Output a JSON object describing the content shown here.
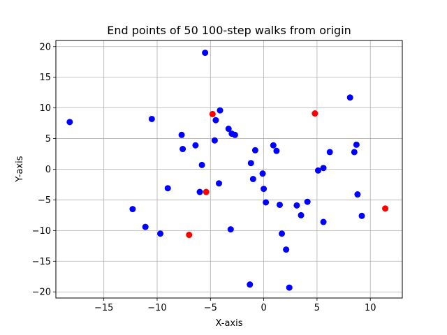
{
  "chart_data": {
    "type": "scatter",
    "title": "End points of 50 100-step walks from origin",
    "xlabel": "X-axis",
    "ylabel": "Y-axis",
    "xlim": [
      -19.5,
      13
    ],
    "ylim": [
      -21,
      21
    ],
    "xticks": [
      -15,
      -10,
      -5,
      0,
      5,
      10
    ],
    "yticks": [
      -20,
      -15,
      -10,
      -5,
      0,
      5,
      10,
      15,
      20
    ],
    "xtick_labels": [
      "−15",
      "−10",
      "−5",
      "0",
      "5",
      "10"
    ],
    "ytick_labels": [
      "−20",
      "−15",
      "−10",
      "−5",
      "0",
      "5",
      "10",
      "15",
      "20"
    ],
    "grid": true,
    "colors": {
      "default": "#0000ff",
      "highlight": "#ff0000",
      "grid": "#b0b0b0"
    },
    "series": [
      {
        "color": "#0000ff",
        "points": [
          {
            "x": -18.2,
            "y": 7.7
          },
          {
            "x": -12.3,
            "y": -6.5
          },
          {
            "x": -11.1,
            "y": -9.4
          },
          {
            "x": -10.5,
            "y": 8.2
          },
          {
            "x": -9.7,
            "y": -10.5
          },
          {
            "x": -9.0,
            "y": -3.1
          },
          {
            "x": -7.7,
            "y": 5.6
          },
          {
            "x": -7.6,
            "y": 3.3
          },
          {
            "x": -6.4,
            "y": 3.9
          },
          {
            "x": -6.0,
            "y": -3.7
          },
          {
            "x": -5.8,
            "y": 0.7
          },
          {
            "x": -5.5,
            "y": 19.0
          },
          {
            "x": -4.6,
            "y": 4.7
          },
          {
            "x": -4.5,
            "y": 8.0
          },
          {
            "x": -4.2,
            "y": -2.3
          },
          {
            "x": -4.1,
            "y": 9.6
          },
          {
            "x": -3.3,
            "y": 6.6
          },
          {
            "x": -3.0,
            "y": 5.8
          },
          {
            "x": -2.7,
            "y": 5.6
          },
          {
            "x": -3.1,
            "y": -9.8
          },
          {
            "x": -1.2,
            "y": 1.0
          },
          {
            "x": -1.0,
            "y": -1.6
          },
          {
            "x": -0.8,
            "y": 3.1
          },
          {
            "x": -1.3,
            "y": -18.8
          },
          {
            "x": -0.1,
            "y": -0.7
          },
          {
            "x": 0.0,
            "y": -3.2
          },
          {
            "x": 0.2,
            "y": -5.4
          },
          {
            "x": 0.9,
            "y": 3.9
          },
          {
            "x": 1.2,
            "y": 3.0
          },
          {
            "x": 1.5,
            "y": -5.8
          },
          {
            "x": 1.7,
            "y": -10.5
          },
          {
            "x": 2.1,
            "y": -13.1
          },
          {
            "x": 2.4,
            "y": -19.3
          },
          {
            "x": 3.1,
            "y": -5.9
          },
          {
            "x": 3.5,
            "y": -7.5
          },
          {
            "x": 4.1,
            "y": -5.3
          },
          {
            "x": 5.1,
            "y": -0.2
          },
          {
            "x": 5.6,
            "y": 0.2
          },
          {
            "x": 5.6,
            "y": -8.6
          },
          {
            "x": 6.2,
            "y": 2.8
          },
          {
            "x": 8.1,
            "y": 11.7
          },
          {
            "x": 8.5,
            "y": 2.8
          },
          {
            "x": 8.7,
            "y": 4.0
          },
          {
            "x": 8.8,
            "y": -4.1
          },
          {
            "x": 9.2,
            "y": -7.6
          }
        ]
      },
      {
        "color": "#ff0000",
        "points": [
          {
            "x": -7.0,
            "y": -10.7
          },
          {
            "x": -5.4,
            "y": -3.7
          },
          {
            "x": -4.8,
            "y": 9.0
          },
          {
            "x": 4.8,
            "y": 9.1
          },
          {
            "x": 11.4,
            "y": -6.4
          }
        ]
      }
    ]
  }
}
